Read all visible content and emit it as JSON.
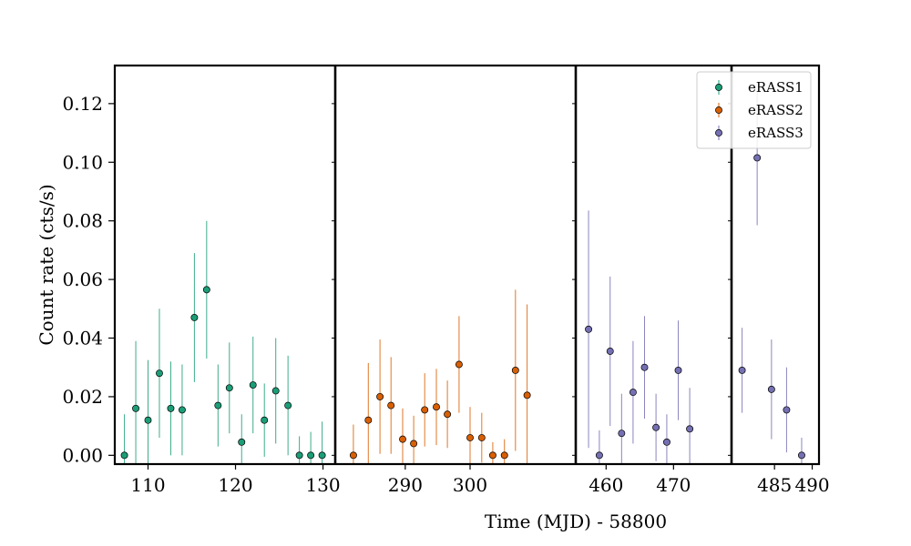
{
  "chart_data": {
    "type": "scatter",
    "title": "",
    "xlabel": "Time (MJD) - 58800",
    "ylabel": "Count rate (cts/s)",
    "ylim": [
      -0.003,
      0.133
    ],
    "yticks": [
      0.0,
      0.02,
      0.04,
      0.06,
      0.08,
      0.1,
      0.12
    ],
    "ytick_labels": [
      "0.00",
      "0.02",
      "0.04",
      "0.06",
      "0.08",
      "0.10",
      "0.12"
    ],
    "error_bars": true,
    "panels": [
      {
        "xlim": [
          106.2,
          131.4
        ],
        "xticks": [
          110,
          120,
          130
        ],
        "xtick_labels": [
          "110",
          "120",
          "130"
        ]
      },
      {
        "xlim": [
          279.2,
          316.3
        ],
        "xticks": [
          290,
          300
        ],
        "xtick_labels": [
          "290",
          "300"
        ]
      },
      {
        "xlim": [
          455.5,
          478.6
        ],
        "xticks": [
          460,
          470
        ],
        "xtick_labels": [
          "460",
          "470"
        ]
      },
      {
        "xlim": [
          479.3,
          490.9
        ],
        "xticks": [
          485,
          490
        ],
        "xtick_labels": [
          "485",
          "490"
        ]
      }
    ],
    "legend": {
      "position": "top-right",
      "entries": [
        "eRASS1",
        "eRASS2",
        "eRASS3"
      ]
    },
    "series": [
      {
        "name": "eRASS1",
        "color": "#1b9e77",
        "panel": 0,
        "x": [
          107.3,
          108.6,
          110.0,
          111.3,
          112.6,
          113.9,
          115.3,
          116.7,
          118.0,
          119.3,
          120.7,
          122.0,
          123.3,
          124.6,
          126.0,
          127.3,
          128.6,
          129.9
        ],
        "y": [
          0.0,
          0.016,
          0.012,
          0.028,
          0.016,
          0.0155,
          0.047,
          0.0565,
          0.017,
          0.023,
          0.0045,
          0.024,
          0.012,
          0.022,
          0.017,
          0.0,
          0.0,
          0.0
        ],
        "yerr": [
          0.014,
          0.023,
          0.0205,
          0.022,
          0.016,
          0.0155,
          0.022,
          0.0235,
          0.014,
          0.0155,
          0.0095,
          0.0165,
          0.0125,
          0.018,
          0.017,
          0.0065,
          0.008,
          0.0115
        ]
      },
      {
        "name": "eRASS2",
        "color": "#d95f02",
        "panel": 1,
        "x": [
          282.0,
          284.3,
          286.1,
          287.8,
          289.6,
          291.3,
          293.0,
          294.8,
          296.5,
          298.3,
          300.0,
          301.8,
          303.5,
          305.3,
          307.0,
          308.8
        ],
        "y": [
          0.0,
          0.012,
          0.02,
          0.017,
          0.0055,
          0.004,
          0.0155,
          0.0165,
          0.014,
          0.031,
          0.006,
          0.006,
          0.0,
          0.0,
          0.029,
          0.0205
        ],
        "yerr": [
          0.0105,
          0.0195,
          0.0195,
          0.0165,
          0.0105,
          0.0095,
          0.0125,
          0.013,
          0.0115,
          0.0165,
          0.0105,
          0.0085,
          0.0045,
          0.0055,
          0.0275,
          0.031
        ]
      },
      {
        "name": "eRASS3",
        "color": "#7570b3",
        "panel": 2,
        "x": [
          457.4,
          459.0,
          460.6,
          462.3,
          464.0,
          465.7,
          467.4,
          469.0,
          470.7,
          472.4
        ],
        "y": [
          0.043,
          0.0,
          0.0355,
          0.0075,
          0.0215,
          0.03,
          0.0095,
          0.0045,
          0.029,
          0.009
        ],
        "yerr": [
          0.0405,
          0.0085,
          0.0255,
          0.0135,
          0.0175,
          0.0175,
          0.0115,
          0.0095,
          0.017,
          0.014
        ]
      },
      {
        "name": "eRASS3",
        "color": "#7570b3",
        "panel": 3,
        "legend": false,
        "x": [
          480.7,
          482.7,
          484.6,
          486.6,
          488.6
        ],
        "y": [
          0.029,
          0.1015,
          0.0225,
          0.0155,
          0.0
        ],
        "yerr": [
          0.0145,
          0.023,
          0.017,
          0.0145,
          0.006
        ]
      }
    ]
  }
}
